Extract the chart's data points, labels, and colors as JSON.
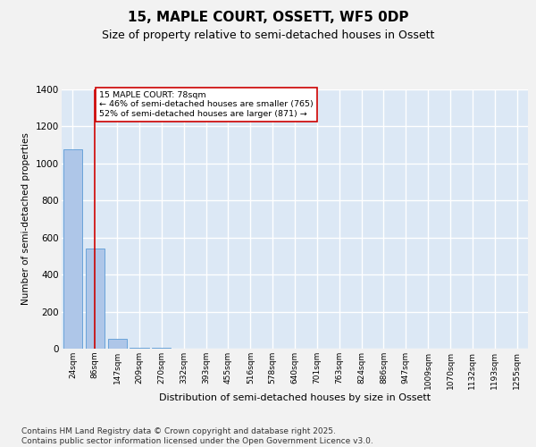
{
  "title": "15, MAPLE COURT, OSSETT, WF5 0DP",
  "subtitle": "Size of property relative to semi-detached houses in Ossett",
  "xlabel": "Distribution of semi-detached houses by size in Ossett",
  "ylabel": "Number of semi-detached properties",
  "categories": [
    "24sqm",
    "86sqm",
    "147sqm",
    "209sqm",
    "270sqm",
    "332sqm",
    "393sqm",
    "455sqm",
    "516sqm",
    "578sqm",
    "640sqm",
    "701sqm",
    "763sqm",
    "824sqm",
    "886sqm",
    "947sqm",
    "1009sqm",
    "1070sqm",
    "1132sqm",
    "1193sqm",
    "1255sqm"
  ],
  "values": [
    1075,
    540,
    55,
    5,
    3,
    2,
    1,
    1,
    0,
    0,
    0,
    0,
    0,
    0,
    0,
    0,
    0,
    0,
    0,
    0,
    0
  ],
  "bar_color": "#aec6e8",
  "bar_edge_color": "#5b9bd5",
  "vline_x_index": 1,
  "vline_color": "#cc0000",
  "annotation_text": "15 MAPLE COURT: 78sqm\n← 46% of semi-detached houses are smaller (765)\n52% of semi-detached houses are larger (871) →",
  "annotation_box_color": "#cc0000",
  "annotation_fill": "#ffffff",
  "ylim": [
    0,
    1400
  ],
  "yticks": [
    0,
    200,
    400,
    600,
    800,
    1000,
    1200,
    1400
  ],
  "background_color": "#dce8f5",
  "fig_background_color": "#f2f2f2",
  "grid_color": "#ffffff",
  "footer_text": "Contains HM Land Registry data © Crown copyright and database right 2025.\nContains public sector information licensed under the Open Government Licence v3.0.",
  "title_fontsize": 11,
  "subtitle_fontsize": 9,
  "ylabel_fontsize": 7.5,
  "xlabel_fontsize": 8,
  "footer_fontsize": 6.5,
  "tick_fontsize": 6.5,
  "ytick_fontsize": 7.5
}
